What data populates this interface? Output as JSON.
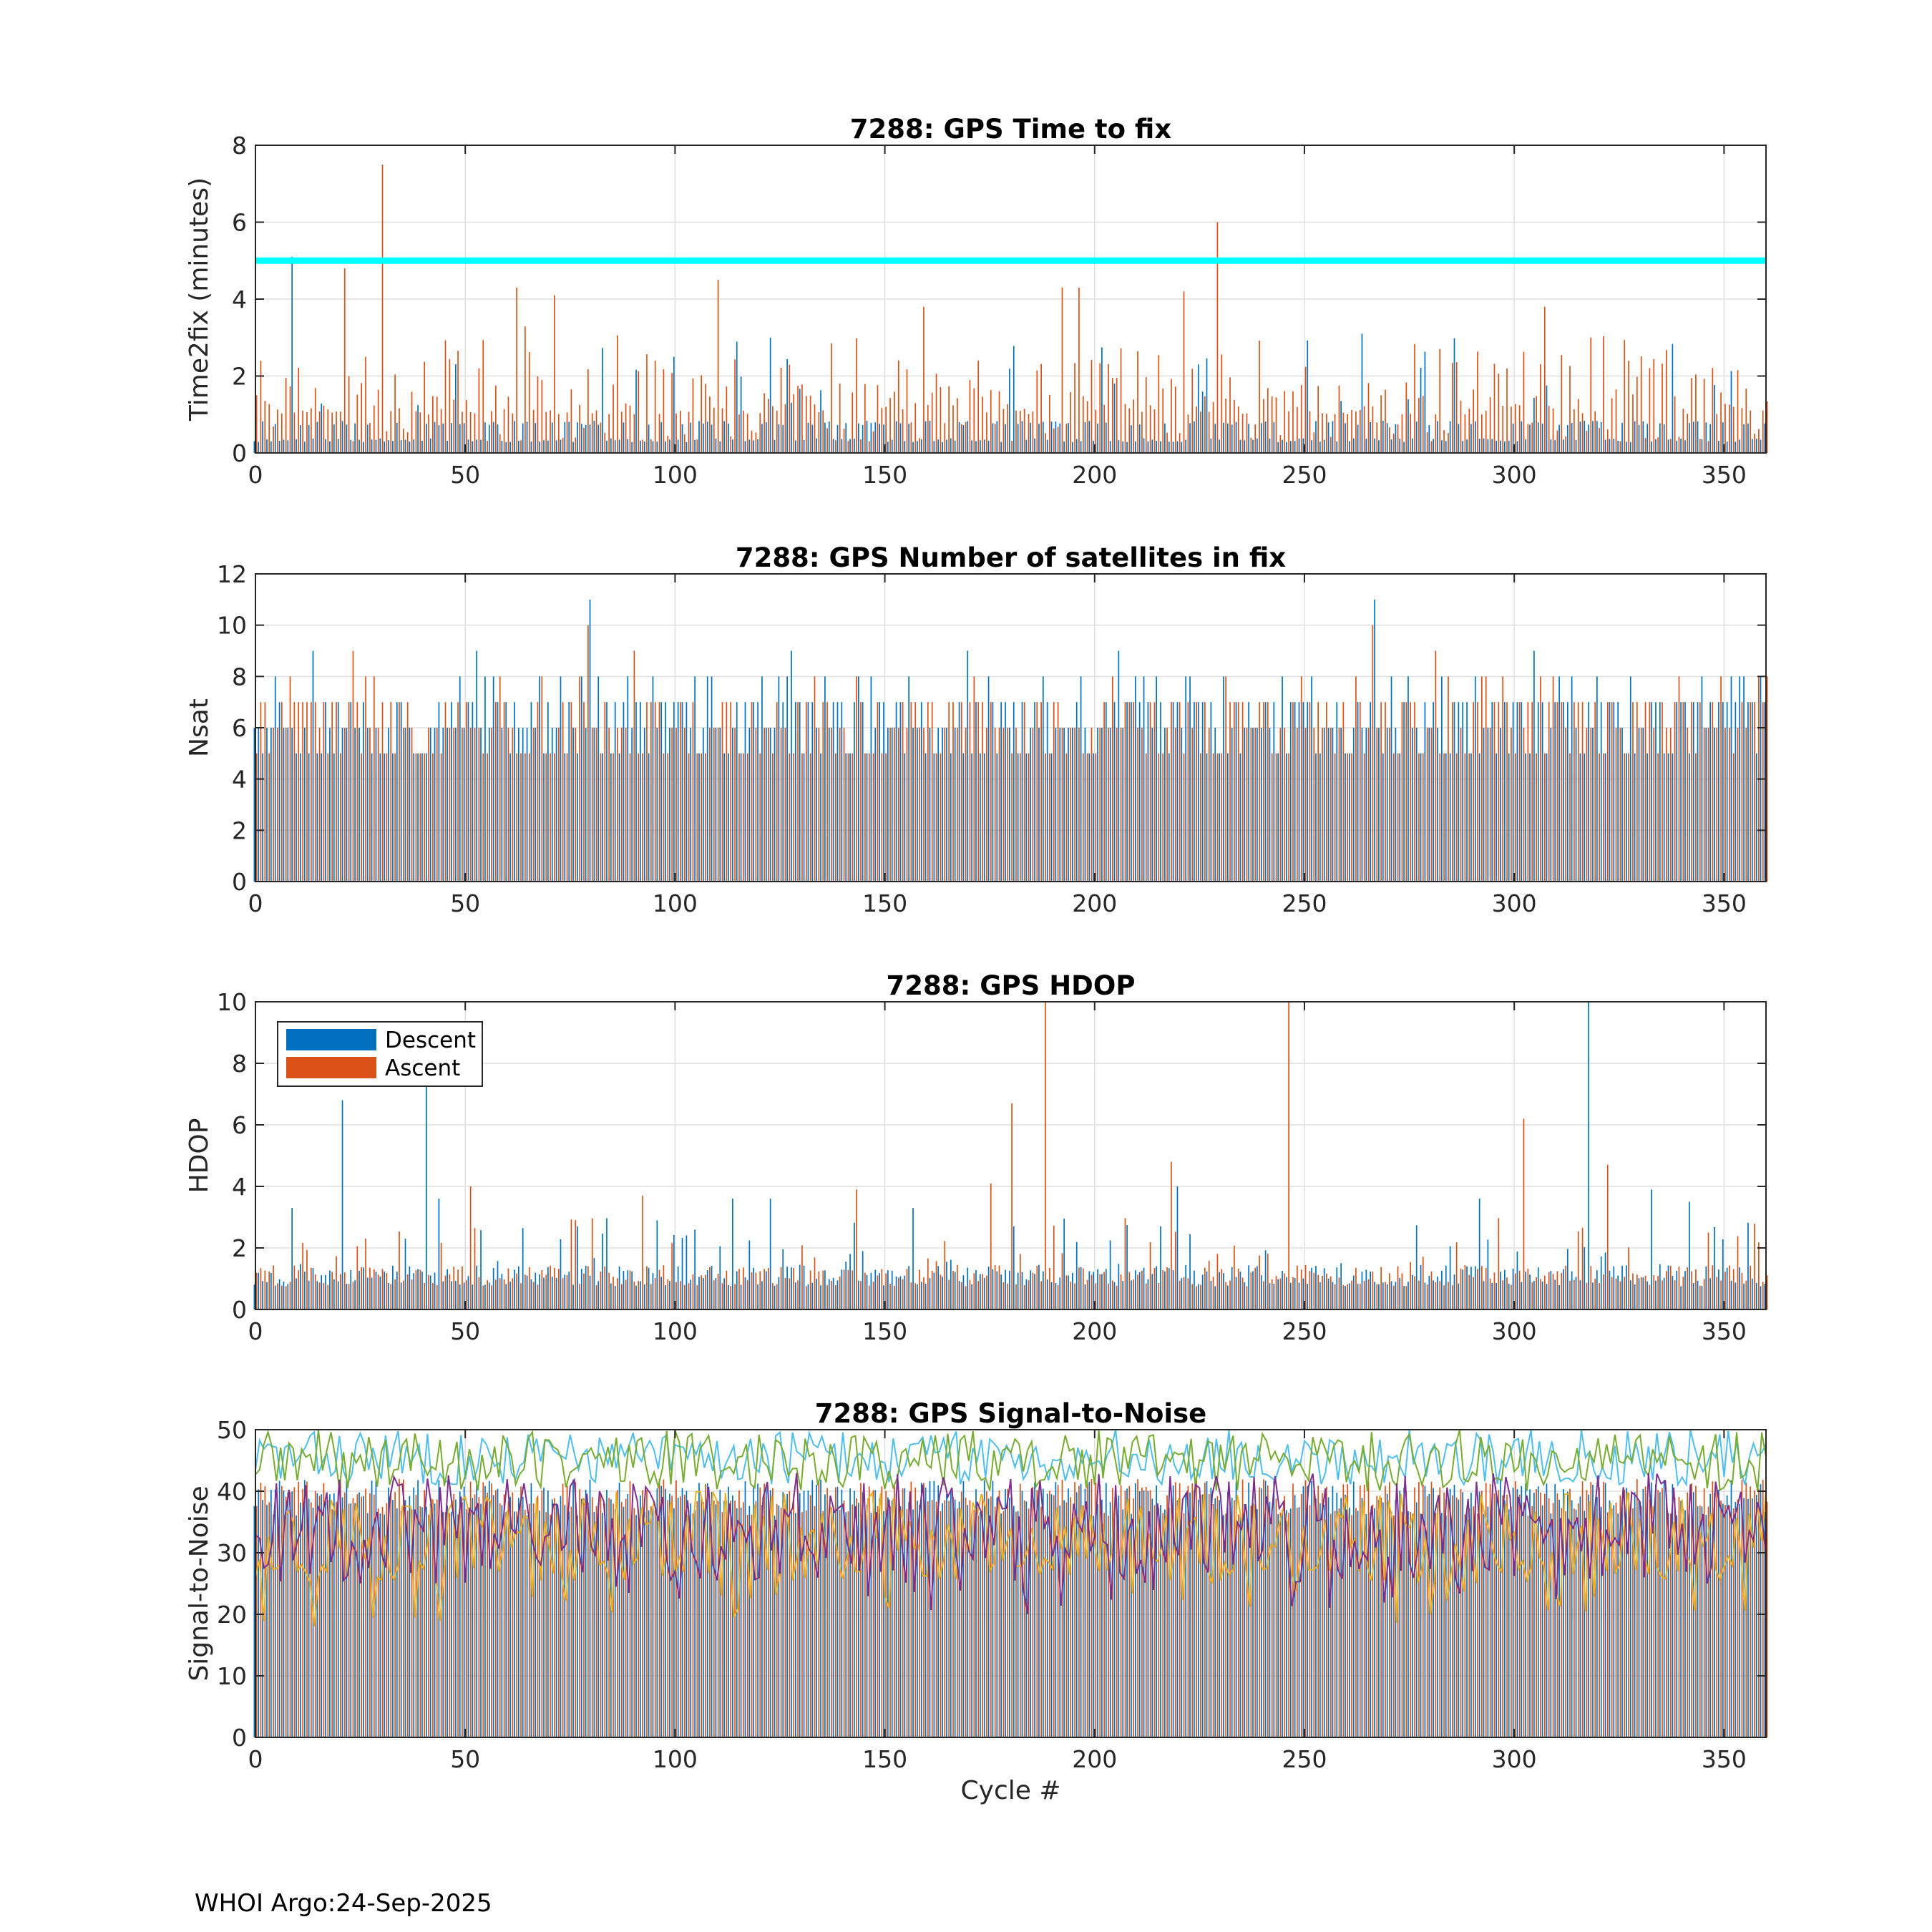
{
  "footer": "WHOI Argo:24-Sep-2025",
  "colors": {
    "descent": "#0072BD",
    "ascent": "#D95319",
    "threshold": "#00FFFF",
    "snr_lines": [
      "#4DBEEE",
      "#77AC30",
      "#EDB120",
      "#7E2F8E"
    ]
  },
  "legend": {
    "items": [
      "Descent",
      "Ascent"
    ]
  },
  "chart_data": [
    {
      "type": "bar",
      "title": "7288: GPS Time to fix",
      "xlabel": "",
      "ylabel": "Time2fix (minutes)",
      "xlim": [
        0,
        360
      ],
      "ylim": [
        0,
        8
      ],
      "xticks": [
        0,
        50,
        100,
        150,
        200,
        250,
        300,
        350
      ],
      "yticks": [
        0,
        2,
        4,
        6,
        8
      ],
      "threshold": 5,
      "series": [
        {
          "name": "Descent",
          "values": "approx. 0.3–0.8 per cycle, occasional spikes to ~3; peaks: cycle 9 ≈ 5.1"
        },
        {
          "name": "Ascent",
          "values": "approx. 1–3 per cycle; peaks: cycle 30 ≈ 7.5, cycle 229 ≈ 6.0, cycle 21 ≈ 4.8, cycle 110 ≈ 4.5, cycle 62 ≈ 4.3, cycle 192 ≈ 4.3, cycle 196 ≈ 4.3, cycle 221 ≈ 4.2, cycle 71 ≈ 4.1"
        }
      ]
    },
    {
      "type": "bar",
      "title": "7288: GPS Number of satellites in fix",
      "xlabel": "",
      "ylabel": "Nsat",
      "xlim": [
        0,
        360
      ],
      "ylim": [
        0,
        12
      ],
      "xticks": [
        0,
        50,
        100,
        150,
        200,
        250,
        300,
        350
      ],
      "yticks": [
        0,
        2,
        4,
        6,
        8,
        10,
        12
      ],
      "series": [
        {
          "name": "Descent",
          "values": "integers mostly 4–9; peaks: cycle 80 = 11, cycle 267 = 11"
        },
        {
          "name": "Ascent",
          "values": "integers mostly 4–9; peak: cycle 79 = 10, cycle 266 = 10"
        }
      ]
    },
    {
      "type": "bar",
      "title": "7288: GPS HDOP",
      "xlabel": "",
      "ylabel": "HDOP",
      "xlim": [
        0,
        360
      ],
      "ylim": [
        0,
        10
      ],
      "xticks": [
        0,
        50,
        100,
        150,
        200,
        250,
        300,
        350
      ],
      "yticks": [
        0,
        2,
        4,
        6,
        8,
        10
      ],
      "legend": "top-left",
      "series": [
        {
          "name": "Descent",
          "values": "mostly 0.8–1.6; peaks: cycle 318 ≈ 10, cycle 41 ≈ 7.3, cycle 21 ≈ 6.8, cycle 220 ≈ 4.0"
        },
        {
          "name": "Ascent",
          "values": "mostly 0.8–1.6; peaks: cycle 188 ≈ 10, cycle 246 ≈ 10, cycle 180 ≈ 6.7, cycle 302 ≈ 6.2, cycle 218 ≈ 4.8, cycle 322 ≈ 4.7, cycle 51 ≈ 4.0"
        }
      ]
    },
    {
      "type": "bar",
      "title": "7288: GPS Signal-to-Noise",
      "xlabel": "Cycle #",
      "ylabel": "Signal-to-Noise",
      "xlim": [
        0,
        360
      ],
      "ylim": [
        0,
        50
      ],
      "xticks": [
        0,
        50,
        100,
        150,
        200,
        250,
        300,
        350
      ],
      "yticks": [
        0,
        10,
        20,
        30,
        40,
        50
      ],
      "series": [
        {
          "name": "Descent bars",
          "values": "approx. 36–42 per cycle"
        },
        {
          "name": "Ascent bars",
          "values": "approx. 36–42 per cycle"
        },
        {
          "name": "SNR line (light blue)",
          "values": "approx. 41–50"
        },
        {
          "name": "SNR line (green)",
          "values": "approx. 40–50"
        },
        {
          "name": "SNR line (yellow)",
          "values": "approx. 18–40"
        },
        {
          "name": "SNR line (purple)",
          "values": "approx. 20–43"
        }
      ]
    }
  ]
}
